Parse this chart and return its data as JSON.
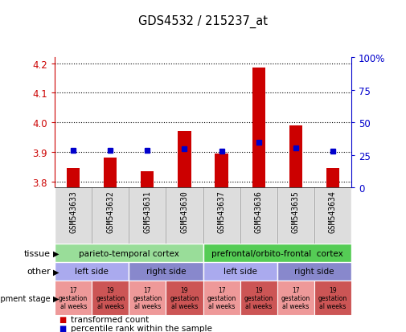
{
  "title": "GDS4532 / 215237_at",
  "samples": [
    "GSM543633",
    "GSM543632",
    "GSM543631",
    "GSM543630",
    "GSM543637",
    "GSM543636",
    "GSM543635",
    "GSM543634"
  ],
  "red_values": [
    3.845,
    3.88,
    3.835,
    3.97,
    3.895,
    4.185,
    3.99,
    3.845
  ],
  "blue_values": [
    3.905,
    3.905,
    3.905,
    3.91,
    3.902,
    3.932,
    3.913,
    3.902
  ],
  "ylim_left": [
    3.78,
    4.22
  ],
  "ylim_right": [
    0,
    100
  ],
  "yticks_left": [
    3.8,
    3.9,
    4.0,
    4.1,
    4.2
  ],
  "yticks_right": [
    0,
    25,
    50,
    75,
    100
  ],
  "left_axis_color": "#cc0000",
  "right_axis_color": "#0000cc",
  "tissue_labels": [
    {
      "text": "parieto-temporal cortex",
      "start": 0,
      "end": 4,
      "color": "#99dd99"
    },
    {
      "text": "prefrontal/orbito-frontal  cortex",
      "start": 4,
      "end": 8,
      "color": "#55cc55"
    }
  ],
  "other_labels": [
    {
      "text": "left side",
      "start": 0,
      "end": 2,
      "color": "#aaaaee"
    },
    {
      "text": "right side",
      "start": 2,
      "end": 4,
      "color": "#8888cc"
    },
    {
      "text": "left side",
      "start": 4,
      "end": 6,
      "color": "#aaaaee"
    },
    {
      "text": "right side",
      "start": 6,
      "end": 8,
      "color": "#8888cc"
    }
  ],
  "dev_labels": [
    {
      "text": "17\ngestation\nal weeks",
      "start": 0,
      "end": 1,
      "color": "#ee9999"
    },
    {
      "text": "19\ngestation\nal weeks",
      "start": 1,
      "end": 2,
      "color": "#cc5555"
    },
    {
      "text": "17\ngestation\nal weeks",
      "start": 2,
      "end": 3,
      "color": "#ee9999"
    },
    {
      "text": "19\ngestation\nal weeks",
      "start": 3,
      "end": 4,
      "color": "#cc5555"
    },
    {
      "text": "17\ngestation\nal weeks",
      "start": 4,
      "end": 5,
      "color": "#ee9999"
    },
    {
      "text": "19\ngestation\nal weeks",
      "start": 5,
      "end": 6,
      "color": "#cc5555"
    },
    {
      "text": "17\ngestation\nal weeks",
      "start": 6,
      "end": 7,
      "color": "#ee9999"
    },
    {
      "text": "19\ngestation\nal weeks",
      "start": 7,
      "end": 8,
      "color": "#cc5555"
    }
  ],
  "legend_red": "transformed count",
  "legend_blue": "percentile rank within the sample",
  "bar_color": "#cc0000",
  "dot_color": "#0000cc",
  "bar_bottom": 3.78
}
